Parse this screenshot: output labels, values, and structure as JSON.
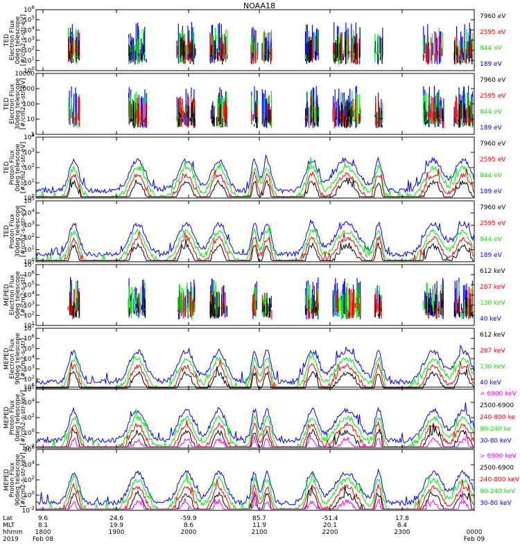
{
  "figure_title": "NOAA18",
  "colors": {
    "blue": "#0000ff",
    "green": "#00ee00",
    "red": "#ff0000",
    "black": "#000000",
    "magenta": "#ff00ff"
  },
  "chart_data": [
    {
      "type": "scatter",
      "ylabel_lines": [
        "TED",
        "Electron Flux",
        "0deg telescope",
        "[#/cm2-s-str-eV]"
      ],
      "y_scale": "log",
      "ylim": [
        1,
        1000000
      ],
      "ytick_labels": [
        "10^0",
        "10^1",
        "10^2",
        "10^3",
        "10^4",
        "10^5",
        "10^6"
      ],
      "series": [
        {
          "name": "7960 eV",
          "color": "#000000"
        },
        {
          "name": "2595 eV",
          "color": "#ff0000"
        },
        {
          "name": "844 eV",
          "color": "#00ee00"
        },
        {
          "name": "189 eV",
          "color": "#0000ff"
        }
      ]
    },
    {
      "type": "scatter",
      "ylabel_lines": [
        "TED",
        "Electron Flux",
        "30deg telescope",
        "[#/cm2-s-str-eV]"
      ],
      "y_scale": "log",
      "ylim": [
        1,
        10000
      ],
      "ytick_labels": [
        "1",
        "10",
        "100",
        "1000",
        "10000"
      ],
      "series": [
        {
          "name": "7960 eV",
          "color": "#000000"
        },
        {
          "name": "2595 eV",
          "color": "#ff0000"
        },
        {
          "name": "844 eV",
          "color": "#00ee00"
        },
        {
          "name": "189 eV",
          "color": "#0000ff"
        }
      ]
    },
    {
      "type": "line",
      "ylabel_lines": [
        "TED",
        "Proton Flux",
        "0deg telescope",
        "[#/cm2-s-str-eV]"
      ],
      "y_scale": "log",
      "ylim": [
        1,
        10000
      ],
      "ytick_labels": [
        "10^0",
        "10^1",
        "10^2",
        "10^3",
        "10^4"
      ],
      "series": [
        {
          "name": "7960 eV",
          "color": "#000000"
        },
        {
          "name": "2595 eV",
          "color": "#ff0000"
        },
        {
          "name": "844 eV",
          "color": "#00ee00"
        },
        {
          "name": "189 eV",
          "color": "#0000ff"
        }
      ]
    },
    {
      "type": "line",
      "ylabel_lines": [
        "TED",
        "Proton Flux",
        "30deg telescope",
        "[#/cm2-s-str-eV]"
      ],
      "y_scale": "log",
      "ylim": [
        1,
        100000
      ],
      "ytick_labels": [
        "10^0",
        "10^1",
        "10^2",
        "10^3",
        "10^4",
        "10^5"
      ],
      "series": [
        {
          "name": "7960 eV",
          "color": "#000000"
        },
        {
          "name": "2595 eV",
          "color": "#ff0000"
        },
        {
          "name": "844 eV",
          "color": "#00ee00"
        },
        {
          "name": "189 eV",
          "color": "#0000ff"
        }
      ]
    },
    {
      "type": "scatter",
      "ylabel_lines": [
        "MEPED",
        "Electron Flux",
        "0deg telescope",
        "[#/cm2-s-str]"
      ],
      "y_scale": "log",
      "ylim": [
        10,
        10000000
      ],
      "ytick_labels": [
        "10^1",
        "10^2",
        "10^3",
        "10^4",
        "10^5",
        "10^6",
        "10^7"
      ],
      "series": [
        {
          "name": "612 keV",
          "color": "#000000"
        },
        {
          "name": "287 keV",
          "color": "#ff0000"
        },
        {
          "name": "130 keV",
          "color": "#00ee00"
        },
        {
          "name": "40 keV",
          "color": "#0000ff"
        }
      ]
    },
    {
      "type": "line",
      "ylabel_lines": [
        "MEPED",
        "Electron Flux",
        "90deg telescope",
        "[#/cm2-s-str]"
      ],
      "y_scale": "log",
      "ylim": [
        10,
        10000000
      ],
      "ytick_labels": [
        "10^1",
        "10^2",
        "10^3",
        "10^4",
        "10^5",
        "10^6",
        "10^7"
      ],
      "series": [
        {
          "name": "612 keV",
          "color": "#000000"
        },
        {
          "name": "287 keV",
          "color": "#ff0000"
        },
        {
          "name": "130 keV",
          "color": "#00ee00"
        },
        {
          "name": "40 keV",
          "color": "#0000ff"
        }
      ]
    },
    {
      "type": "line",
      "ylabel_lines": [
        "MEPED",
        "Proton Flux",
        "0deg telescope",
        "[#/cm2-s-str-keV]"
      ],
      "y_scale": "log",
      "ylim": [
        0.01,
        1000000
      ],
      "ytick_labels": [
        "10^-2",
        "10^0",
        "10^2",
        "10^4",
        "10^6"
      ],
      "series": [
        {
          "name": "> 6900 keV",
          "color": "#ff00ff"
        },
        {
          "name": "2500-6900",
          "color": "#000000"
        },
        {
          "name": "240-800 ke",
          "color": "#ff0000"
        },
        {
          "name": "80-240 ke",
          "color": "#00ee00"
        },
        {
          "name": "30-80 keV",
          "color": "#0000ff"
        }
      ]
    },
    {
      "type": "line",
      "ylabel_lines": [
        "MEPED",
        "Proton Flux",
        "90deg telescope",
        "[#/cm2-s-str-keV]"
      ],
      "y_scale": "log",
      "ylim": [
        0.01,
        1000000
      ],
      "ytick_labels": [
        "10^-2",
        "10^0",
        "10^2",
        "10^4",
        "10^6"
      ],
      "series": [
        {
          "name": "> 6900 keV",
          "color": "#ff00ff"
        },
        {
          "name": "2500-6900",
          "color": "#000000"
        },
        {
          "name": "240-800 keV",
          "color": "#ff0000"
        },
        {
          "name": "80-240 keV",
          "color": "#00ee00"
        },
        {
          "name": "30-80 keV",
          "color": "#0000ff"
        }
      ]
    }
  ],
  "xaxis": {
    "row_labels": [
      "Lat",
      "MLT",
      "hhmm",
      "2019"
    ],
    "ticks": [
      {
        "lat": "9.6",
        "mlt": "8.1",
        "hhmm": "1800",
        "date": "Feb 08"
      },
      {
        "lat": "24.6",
        "mlt": "19.9",
        "hhmm": "1900",
        "date": ""
      },
      {
        "lat": "-59.9",
        "mlt": "8.6",
        "hhmm": "2000",
        "date": ""
      },
      {
        "lat": "85.7",
        "mlt": "11.9",
        "hhmm": "2100",
        "date": ""
      },
      {
        "lat": "-51.4",
        "mlt": "20.1",
        "hhmm": "2200",
        "date": ""
      },
      {
        "lat": "17.8",
        "mlt": "8.4",
        "hhmm": "2300",
        "date": ""
      },
      {
        "lat": "",
        "mlt": "",
        "hhmm": "0000",
        "date": "Feb 09"
      }
    ]
  }
}
